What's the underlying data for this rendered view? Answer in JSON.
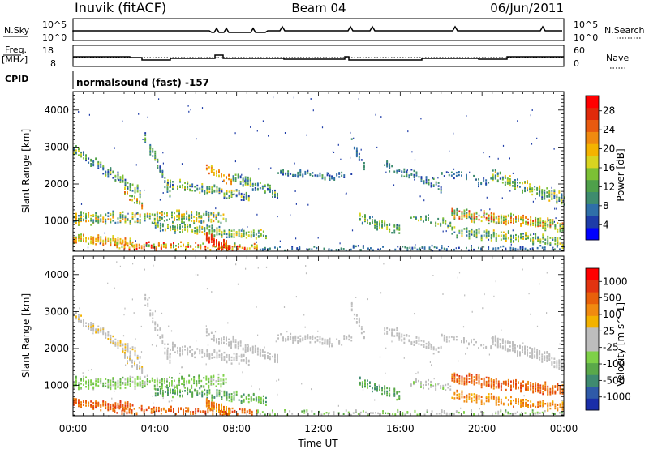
{
  "header": {
    "station": "Inuvik (fitACF)",
    "beam": "Beam 04",
    "date": "06/Jun/2011"
  },
  "summary_panels": {
    "nsky_label": "N.Sky",
    "nsky_ticks": [
      "10^5",
      "10^0"
    ],
    "nsearch_label": "N.Search",
    "nsearch_ticks": [
      "10^5",
      "10^0"
    ],
    "freq_label_line1": "Freq.",
    "freq_label_line2": "[MHz]",
    "freq_ticks": [
      "18",
      "8"
    ],
    "nave_label": "Nave",
    "nave_ticks": [
      "60",
      "0"
    ],
    "cpid_label": "CPID",
    "cpid_text": "normalsound (fast) -157"
  },
  "colorbars": {
    "power": {
      "label": "Power [dB]",
      "ticks": [
        "28",
        "24",
        "20",
        "16",
        "12",
        "8",
        "4"
      ],
      "colors": [
        "#0000ff",
        "#1e3ca8",
        "#2f6fa8",
        "#3e8c6e",
        "#4fa04a",
        "#7cc035",
        "#d8d420",
        "#f4b300",
        "#f08a10",
        "#e85a10",
        "#e02a0a",
        "#ff0000"
      ]
    },
    "velocity": {
      "label": "Velocity [m s^-1]",
      "ticks": [
        "1000",
        "500",
        "100",
        "25",
        "-25",
        "-100",
        "-500",
        "-1000"
      ],
      "colors": [
        "#1a2ea8",
        "#2f5aa8",
        "#3f8a70",
        "#5aa84a",
        "#7ed048",
        "#bdbdbd",
        "#bdbdbd",
        "#f3b200",
        "#f08a10",
        "#e8600a",
        "#e23410",
        "#ff0000"
      ]
    }
  },
  "chart_data": [
    {
      "type": "heatmap",
      "panel": "power",
      "ylabel": "Slant Range [km]",
      "xlabel": "",
      "ylim": [
        180,
        4500
      ],
      "xlim": [
        0,
        24
      ],
      "y_ticks": [
        "1000",
        "2000",
        "3000",
        "4000"
      ],
      "x_ticks": [
        "00:00",
        "04:00",
        "08:00",
        "12:00",
        "16:00",
        "20:00",
        "00:00"
      ],
      "colorbar_label": "Power [dB]"
    },
    {
      "type": "heatmap",
      "panel": "velocity",
      "ylabel": "Slant Range [km]",
      "xlabel": "Time UT",
      "ylim": [
        180,
        4500
      ],
      "xlim": [
        0,
        24
      ],
      "y_ticks": [
        "1000",
        "2000",
        "3000",
        "4000"
      ],
      "x_ticks": [
        "00:00",
        "04:00",
        "08:00",
        "12:00",
        "16:00",
        "20:00",
        "00:00"
      ],
      "colorbar_label": "Velocity [m s^-1]"
    }
  ]
}
